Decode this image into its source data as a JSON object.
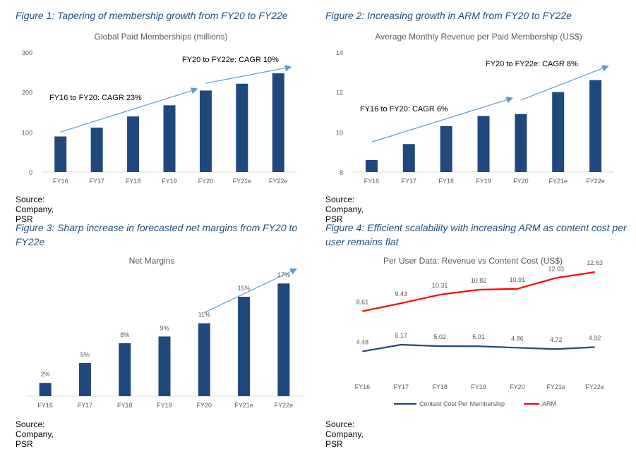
{
  "colors": {
    "bar": "#1f497d",
    "arrow": "#5b9bd5",
    "cost": "#1f497d",
    "arm": "#ff0000",
    "axis": "#d9d9d9",
    "text": "#595959",
    "title": "#1f4e79"
  },
  "panels": {
    "p1": {
      "caption": "Figure 1: Tapering of membership growth from FY20 to FY22e",
      "source": "Source: Company, PSR"
    },
    "p2": {
      "caption": "Figure 2: Increasing growth in ARM from FY20 to FY22e",
      "source": "Source: Company, PSR"
    },
    "p3": {
      "caption": "Figure 3: Sharp increase in forecasted net margins from FY20 to FY22e",
      "source": "Source: Company, PSR"
    },
    "p4": {
      "caption": "Figure 4: Efficient scalability with increasing ARM as content cost per user remains flat",
      "source": "Source: Company, PSR"
    }
  },
  "chart_data": [
    {
      "type": "bar",
      "title": "Global Paid Memberships (millions)",
      "categories": [
        "FY16",
        "FY17",
        "FY18",
        "FY19",
        "FY20",
        "FY21e",
        "FY22e"
      ],
      "values": [
        89,
        111,
        139,
        167,
        204,
        221,
        247
      ],
      "ylim": [
        0,
        300
      ],
      "yticks": [
        0,
        100,
        200,
        300
      ],
      "ytick_labels": [
        "0",
        "100",
        "200",
        "300"
      ],
      "grid": false,
      "annotations": [
        {
          "text": "FY16 to FY20: CAGR 23%",
          "arrow_from": [
            "FY16",
            100
          ],
          "arrow_to": [
            "FY20",
            208
          ]
        },
        {
          "text": "FY20 to FY22e: CAGR 10%",
          "arrow_from": [
            "FY20",
            222
          ],
          "arrow_to": [
            "FY22e",
            263
          ]
        }
      ]
    },
    {
      "type": "bar",
      "title": "Average Monthly  Revenue per Paid Membership  (US$)",
      "categories": [
        "FY16",
        "FY17",
        "FY18",
        "FY19",
        "FY20",
        "FY21e",
        "FY22e"
      ],
      "values": [
        8.6,
        9.4,
        10.3,
        10.8,
        10.9,
        12.0,
        12.6
      ],
      "ylim": [
        8,
        14
      ],
      "yticks": [
        8,
        10,
        12,
        14
      ],
      "ytick_labels": [
        "8",
        "10",
        "12",
        "14"
      ],
      "grid": false,
      "annotations": [
        {
          "text": "FY16 to FY20: CAGR 6%",
          "arrow_from": [
            "FY16",
            9.5
          ],
          "arrow_to": [
            "FY20",
            11.7
          ]
        },
        {
          "text": "FY20 to FY22e: CAGR 8%",
          "arrow_from": [
            "FY20",
            11.6
          ],
          "arrow_to": [
            "FY22e",
            13.3
          ]
        }
      ]
    },
    {
      "type": "bar",
      "title": "Net Margins",
      "categories": [
        "FY16",
        "FY17",
        "FY18",
        "FY19",
        "FY20",
        "FY21e",
        "FY22e"
      ],
      "values": [
        2,
        5,
        8,
        9,
        11,
        15,
        17
      ],
      "data_labels": [
        "2%",
        "5%",
        "8%",
        "9%",
        "11%",
        "15%",
        "17%"
      ],
      "ylim": [
        0,
        20
      ],
      "show_yaxis": false,
      "grid": false,
      "annotations": [
        {
          "text": "",
          "arrow_from": [
            "FY20",
            12.6
          ],
          "arrow_to": [
            "FY22e",
            19.2
          ]
        }
      ]
    },
    {
      "type": "line",
      "title": "Per User Data: Revenue vs Content Cost (US$)",
      "categories": [
        "FY16",
        "FY17",
        "FY18",
        "FY19",
        "FY20",
        "FY21e",
        "FY22e"
      ],
      "series": [
        {
          "name": "Content Cost Per Membership",
          "values": [
            4.48,
            5.17,
            5.02,
            5.01,
            4.86,
            4.72,
            4.92
          ],
          "labels": [
            "4.48",
            "5.17",
            "5.02",
            "5.01",
            "4.86",
            "4.72",
            "4.92"
          ]
        },
        {
          "name": "ARM",
          "values": [
            8.61,
            9.43,
            10.31,
            10.82,
            10.91,
            12.03,
            12.63
          ],
          "labels": [
            "8.61",
            "9.43",
            "10.31",
            "10.82",
            "10.91",
            "12.03",
            "12.63"
          ]
        }
      ],
      "ylim": [
        3,
        13.5
      ],
      "show_yaxis": false,
      "grid": false,
      "legend": "bottom"
    }
  ]
}
